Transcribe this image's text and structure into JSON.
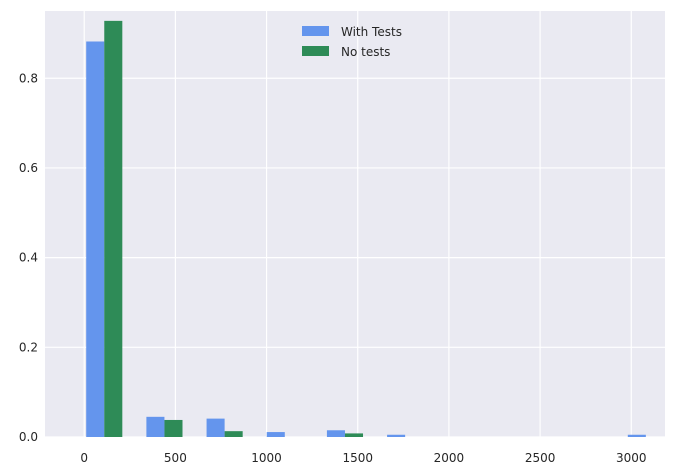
{
  "chart_data": {
    "type": "bar",
    "title": "",
    "xlabel": "",
    "ylabel": "",
    "xlim": [
      -215,
      3185
    ],
    "ylim": [
      0,
      0.95
    ],
    "x_ticks": [
      0,
      500,
      1000,
      1500,
      2000,
      2500,
      3000
    ],
    "y_ticks": [
      0.0,
      0.2,
      0.4,
      0.6,
      0.8
    ],
    "x_tick_labels": [
      "0",
      "500",
      "1000",
      "1500",
      "2000",
      "2500",
      "3000"
    ],
    "y_tick_labels": [
      "0.0",
      "0.2",
      "0.4",
      "0.6",
      "0.8"
    ],
    "grid": true,
    "legend_position": "top-center",
    "bin_edges": [
      -55,
      275,
      605,
      935,
      1265,
      1595,
      1925,
      2255,
      2585,
      2915,
      3245
    ],
    "series": [
      {
        "name": "With Tests",
        "color": "#6495ED",
        "values": [
          0.882,
          0.045,
          0.041,
          0.011,
          0.015,
          0.005,
          0.0,
          0.0,
          0.0,
          0.005
        ]
      },
      {
        "name": "No tests",
        "color": "#2E8B57",
        "values": [
          0.928,
          0.038,
          0.013,
          0.0,
          0.008,
          0.0,
          0.0,
          0.0,
          0.0,
          0.0
        ]
      }
    ]
  }
}
